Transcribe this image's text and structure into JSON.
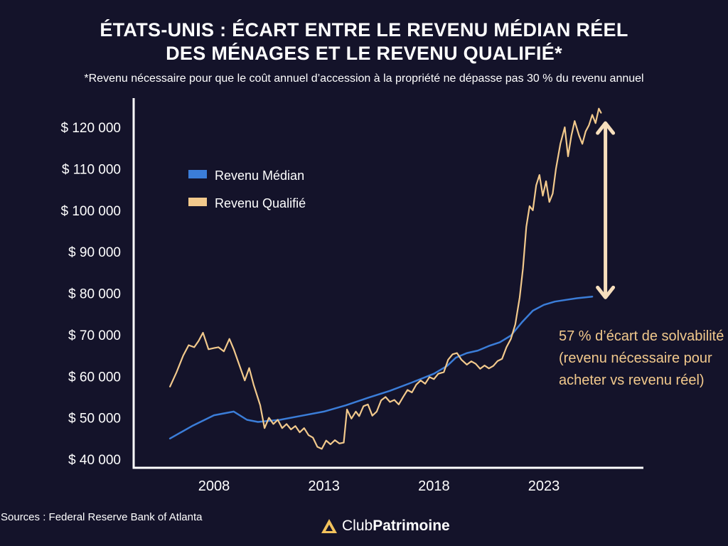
{
  "title_line1": "ÉTATS-UNIS : ÉCART ENTRE LE REVENU MÉDIAN RÉEL",
  "title_line2": "DES MÉNAGES ET LE REVENU QUALIFIÉ*",
  "subtitle": "*Revenu nécessaire pour que le coût annuel d’accession à la propriété ne dépasse pas 30 % du revenu annuel",
  "annotation": "57 % d’écart de solvabilité (revenu nécessaire pour acheter vs revenu réel)",
  "source": "Sources : Federal Reserve Bank of Atlanta",
  "logo": {
    "part1": "Club",
    "part2": "Patrimoine"
  },
  "colors": {
    "background": "#14132a",
    "median": "#3b7dd8",
    "qualified": "#f2c98c",
    "arrow": "#f7dfbd",
    "axis": "#ffffff"
  },
  "chart_data": {
    "type": "line",
    "ylim": [
      40000,
      125000
    ],
    "xlim": [
      2005.4,
      2026
    ],
    "y_ticks": [
      {
        "value": 40000,
        "label": "$ 40 000"
      },
      {
        "value": 50000,
        "label": "$ 50 000"
      },
      {
        "value": 60000,
        "label": "$ 60 000"
      },
      {
        "value": 70000,
        "label": "$ 70 000"
      },
      {
        "value": 80000,
        "label": "$ 80 000"
      },
      {
        "value": 90000,
        "label": "$ 90 000"
      },
      {
        "value": 100000,
        "label": "$ 100 000"
      },
      {
        "value": 110000,
        "label": "$ 110 000"
      },
      {
        "value": 120000,
        "label": "$ 120 000"
      }
    ],
    "x_ticks": [
      {
        "value": 2008,
        "label": "2008"
      },
      {
        "value": 2013,
        "label": "2013"
      },
      {
        "value": 2018,
        "label": "2018"
      },
      {
        "value": 2023,
        "label": "2023"
      }
    ],
    "legend_placement": "top-left",
    "series": [
      {
        "name": "Revenu Médian",
        "color": "#3b7dd8",
        "points": [
          [
            2006.0,
            45000
          ],
          [
            2007.0,
            48000
          ],
          [
            2008.0,
            50600
          ],
          [
            2008.9,
            51500
          ],
          [
            2009.5,
            49500
          ],
          [
            2010.0,
            49000
          ],
          [
            2011.0,
            49500
          ],
          [
            2012.0,
            50500
          ],
          [
            2013.0,
            51500
          ],
          [
            2014.0,
            53000
          ],
          [
            2015.0,
            54800
          ],
          [
            2016.0,
            56500
          ],
          [
            2017.0,
            58500
          ],
          [
            2018.0,
            60600
          ],
          [
            2018.6,
            62500
          ],
          [
            2019.0,
            64500
          ],
          [
            2019.5,
            65600
          ],
          [
            2020.0,
            66200
          ],
          [
            2020.5,
            67300
          ],
          [
            2021.0,
            68200
          ],
          [
            2021.5,
            69800
          ],
          [
            2022.0,
            73000
          ],
          [
            2022.5,
            75800
          ],
          [
            2023.0,
            77200
          ],
          [
            2023.5,
            78000
          ],
          [
            2024.0,
            78400
          ],
          [
            2024.5,
            78800
          ],
          [
            2025.2,
            79200
          ]
        ]
      },
      {
        "name": "Revenu Qualifié",
        "color": "#f2c98c",
        "points": [
          [
            2006.0,
            57500
          ],
          [
            2006.3,
            61000
          ],
          [
            2006.6,
            65000
          ],
          [
            2006.85,
            67500
          ],
          [
            2007.1,
            67000
          ],
          [
            2007.3,
            68500
          ],
          [
            2007.5,
            70500
          ],
          [
            2007.75,
            66500
          ],
          [
            2008.0,
            66800
          ],
          [
            2008.2,
            67000
          ],
          [
            2008.45,
            66000
          ],
          [
            2008.7,
            69000
          ],
          [
            2008.9,
            66500
          ],
          [
            2009.2,
            62000
          ],
          [
            2009.4,
            59000
          ],
          [
            2009.6,
            62000
          ],
          [
            2009.8,
            58000
          ],
          [
            2010.1,
            53000
          ],
          [
            2010.3,
            47500
          ],
          [
            2010.5,
            50000
          ],
          [
            2010.7,
            48500
          ],
          [
            2010.9,
            49500
          ],
          [
            2011.1,
            47500
          ],
          [
            2011.3,
            48500
          ],
          [
            2011.5,
            47200
          ],
          [
            2011.7,
            48000
          ],
          [
            2011.9,
            46500
          ],
          [
            2012.1,
            47500
          ],
          [
            2012.3,
            45800
          ],
          [
            2012.5,
            45200
          ],
          [
            2012.7,
            43000
          ],
          [
            2012.9,
            42500
          ],
          [
            2013.1,
            44500
          ],
          [
            2013.3,
            43600
          ],
          [
            2013.5,
            44600
          ],
          [
            2013.7,
            43800
          ],
          [
            2013.9,
            44000
          ],
          [
            2014.05,
            52000
          ],
          [
            2014.25,
            49800
          ],
          [
            2014.45,
            51500
          ],
          [
            2014.6,
            50400
          ],
          [
            2014.8,
            52800
          ],
          [
            2015.0,
            53200
          ],
          [
            2015.2,
            50500
          ],
          [
            2015.4,
            51500
          ],
          [
            2015.6,
            54200
          ],
          [
            2015.8,
            55000
          ],
          [
            2016.0,
            53800
          ],
          [
            2016.2,
            54300
          ],
          [
            2016.4,
            53200
          ],
          [
            2016.6,
            55000
          ],
          [
            2016.8,
            56700
          ],
          [
            2017.0,
            56100
          ],
          [
            2017.2,
            58000
          ],
          [
            2017.4,
            59000
          ],
          [
            2017.6,
            58200
          ],
          [
            2017.8,
            59800
          ],
          [
            2018.0,
            59300
          ],
          [
            2018.2,
            60600
          ],
          [
            2018.45,
            61000
          ],
          [
            2018.65,
            64000
          ],
          [
            2018.85,
            65300
          ],
          [
            2019.05,
            65600
          ],
          [
            2019.25,
            64000
          ],
          [
            2019.5,
            62800
          ],
          [
            2019.7,
            63600
          ],
          [
            2019.9,
            63000
          ],
          [
            2020.1,
            61800
          ],
          [
            2020.3,
            62600
          ],
          [
            2020.5,
            61900
          ],
          [
            2020.7,
            62500
          ],
          [
            2020.9,
            63700
          ],
          [
            2021.1,
            64200
          ],
          [
            2021.3,
            67000
          ],
          [
            2021.5,
            69000
          ],
          [
            2021.7,
            72500
          ],
          [
            2021.9,
            79000
          ],
          [
            2022.05,
            86000
          ],
          [
            2022.2,
            96000
          ],
          [
            2022.35,
            101000
          ],
          [
            2022.5,
            100000
          ],
          [
            2022.65,
            106000
          ],
          [
            2022.8,
            108500
          ],
          [
            2022.95,
            103500
          ],
          [
            2023.1,
            107000
          ],
          [
            2023.25,
            102000
          ],
          [
            2023.4,
            104000
          ],
          [
            2023.55,
            110000
          ],
          [
            2023.75,
            116000
          ],
          [
            2023.95,
            120000
          ],
          [
            2024.1,
            113000
          ],
          [
            2024.25,
            118000
          ],
          [
            2024.4,
            121500
          ],
          [
            2024.6,
            118000
          ],
          [
            2024.75,
            116000
          ],
          [
            2024.9,
            119000
          ],
          [
            2025.05,
            120500
          ],
          [
            2025.2,
            123000
          ],
          [
            2025.35,
            121000
          ],
          [
            2025.5,
            124500
          ],
          [
            2025.6,
            123500
          ]
        ]
      }
    ],
    "gap_arrow": {
      "x": 2025.8,
      "from": 79000,
      "to": 121000
    }
  }
}
